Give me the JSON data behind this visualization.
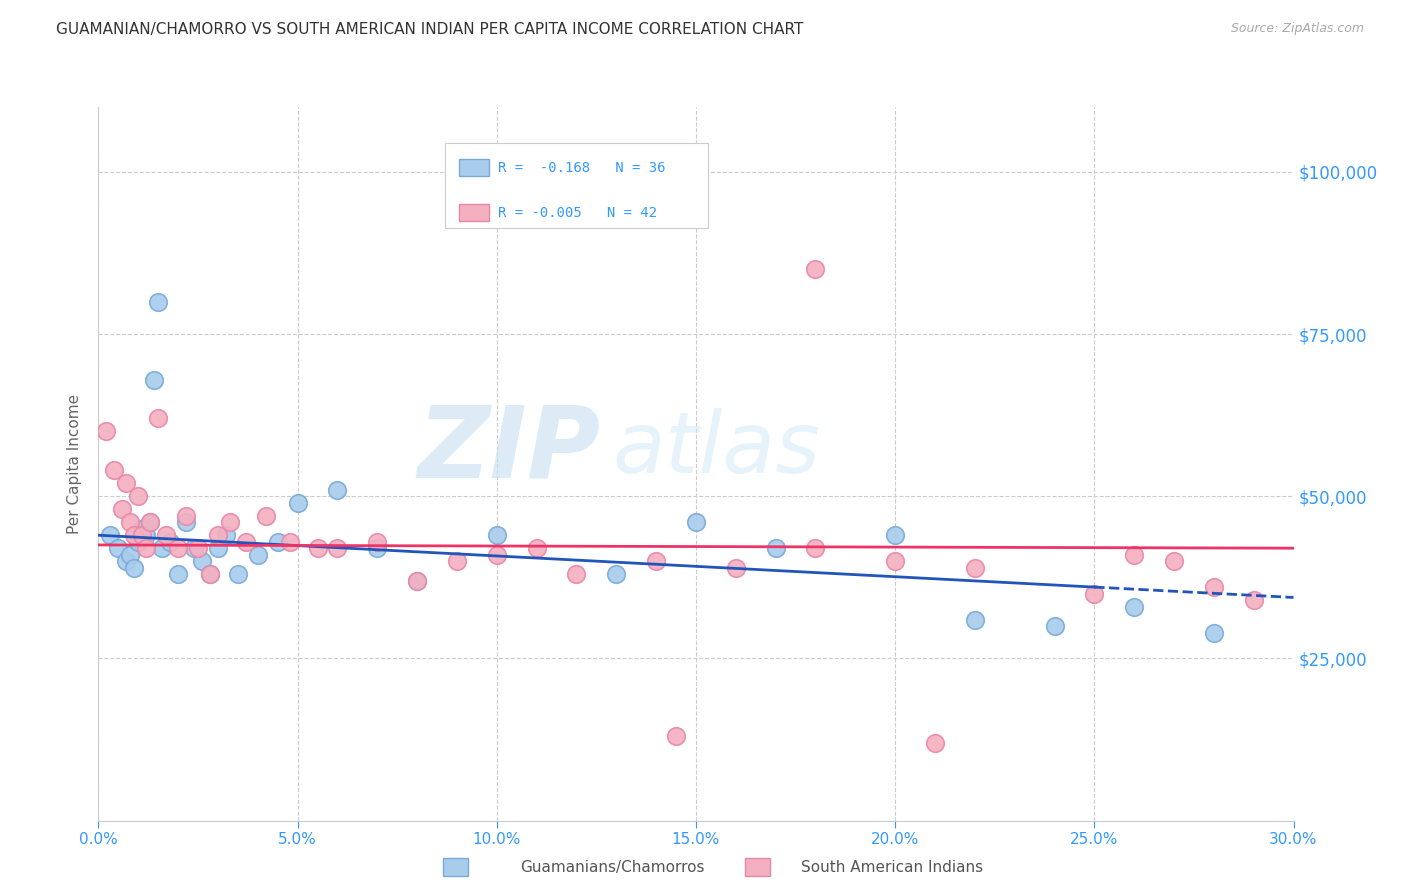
{
  "title": "GUAMANIAN/CHAMORRO VS SOUTH AMERICAN INDIAN PER CAPITA INCOME CORRELATION CHART",
  "source": "Source: ZipAtlas.com",
  "ylabel": "Per Capita Income",
  "xlabel_ticks": [
    "0.0%",
    "5.0%",
    "10.0%",
    "15.0%",
    "20.0%",
    "25.0%",
    "30.0%"
  ],
  "xlabel_vals": [
    0.0,
    5.0,
    10.0,
    15.0,
    20.0,
    25.0,
    30.0
  ],
  "ylim": [
    0,
    110000
  ],
  "xlim": [
    0.0,
    30.0
  ],
  "yticks": [
    0,
    25000,
    50000,
    75000,
    100000
  ],
  "ytick_labels": [
    "",
    "$25,000",
    "$50,000",
    "$75,000",
    "$100,000"
  ],
  "legend_r_blue": "R =  -0.168",
  "legend_n_blue": "N = 36",
  "legend_r_pink": "R = -0.005",
  "legend_n_pink": "N = 42",
  "legend_label_blue": "Guamanians/Chamorros",
  "legend_label_pink": "South American Indians",
  "watermark_zip": "ZIP",
  "watermark_atlas": "atlas",
  "blue_color": "#a8ccec",
  "pink_color": "#f4b0c0",
  "blue_edge": "#7aaad8",
  "pink_edge": "#e888a8",
  "blue_line_color": "#2255bb",
  "pink_line_color": "#ee3366",
  "background_color": "#ffffff",
  "grid_color": "#cccccc",
  "title_color": "#333333",
  "axis_color": "#3399ff",
  "blue_scatter_x": [
    0.3,
    0.5,
    0.7,
    0.8,
    0.9,
    1.0,
    1.1,
    1.2,
    1.3,
    1.4,
    1.5,
    1.6,
    1.8,
    2.0,
    2.2,
    2.4,
    2.6,
    2.8,
    3.0,
    3.2,
    3.5,
    4.0,
    4.5,
    5.0,
    6.0,
    7.0,
    8.0,
    10.0,
    13.0,
    15.0,
    17.0,
    20.0,
    22.0,
    24.0,
    26.0,
    28.0
  ],
  "blue_scatter_y": [
    44000,
    42000,
    40000,
    41000,
    39000,
    43000,
    45000,
    44000,
    46000,
    68000,
    80000,
    42000,
    43000,
    38000,
    46000,
    42000,
    40000,
    38000,
    42000,
    44000,
    38000,
    41000,
    43000,
    49000,
    51000,
    42000,
    37000,
    44000,
    38000,
    46000,
    42000,
    44000,
    31000,
    30000,
    33000,
    29000
  ],
  "pink_scatter_x": [
    0.2,
    0.4,
    0.6,
    0.7,
    0.8,
    0.9,
    1.0,
    1.1,
    1.2,
    1.3,
    1.5,
    1.7,
    2.0,
    2.2,
    2.5,
    2.8,
    3.0,
    3.3,
    3.7,
    4.2,
    4.8,
    5.5,
    6.0,
    7.0,
    8.0,
    9.0,
    10.0,
    11.0,
    12.0,
    14.0,
    16.0,
    18.0,
    20.0,
    21.0,
    22.0,
    25.0,
    26.0,
    27.0,
    28.0,
    29.0,
    18.0,
    14.5
  ],
  "pink_scatter_y": [
    60000,
    54000,
    48000,
    52000,
    46000,
    44000,
    50000,
    44000,
    42000,
    46000,
    62000,
    44000,
    42000,
    47000,
    42000,
    38000,
    44000,
    46000,
    43000,
    47000,
    43000,
    42000,
    42000,
    43000,
    37000,
    40000,
    41000,
    42000,
    38000,
    40000,
    39000,
    42000,
    40000,
    12000,
    39000,
    35000,
    41000,
    40000,
    36000,
    34000,
    85000,
    13000
  ],
  "blue_line_x0": 0.0,
  "blue_line_y0": 44000,
  "blue_line_x1": 25.0,
  "blue_line_y1": 36000,
  "blue_line_xdash0": 25.0,
  "blue_line_xdash1": 30.0,
  "blue_line_ydash0": 36000,
  "blue_line_ydash1": 34400,
  "pink_line_x0": 0.0,
  "pink_line_y0": 42500,
  "pink_line_x1": 30.0,
  "pink_line_y1": 42000
}
